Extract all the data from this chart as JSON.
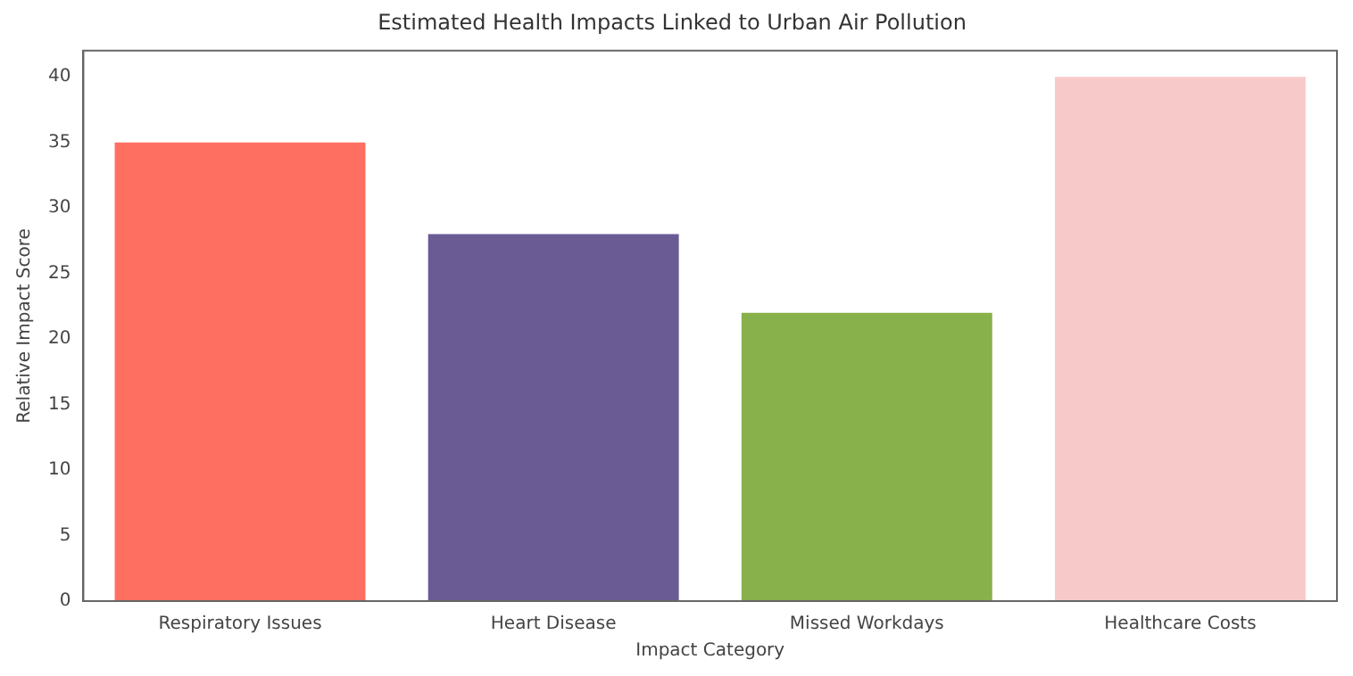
{
  "chart_data": {
    "type": "bar",
    "title": "Estimated Health Impacts Linked to Urban Air Pollution",
    "xlabel": "Impact Category",
    "ylabel": "Relative Impact Score",
    "categories": [
      "Respiratory Issues",
      "Heart Disease",
      "Missed Workdays",
      "Healthcare Costs"
    ],
    "values": [
      35,
      28,
      22,
      40
    ],
    "colors": [
      "#ff6f61",
      "#6b5b95",
      "#88b04b",
      "#f7cac9"
    ],
    "ylim": [
      0,
      42
    ],
    "yticks": [
      0,
      5,
      10,
      15,
      20,
      25,
      30,
      35,
      40
    ],
    "grid": false,
    "legend": false
  }
}
